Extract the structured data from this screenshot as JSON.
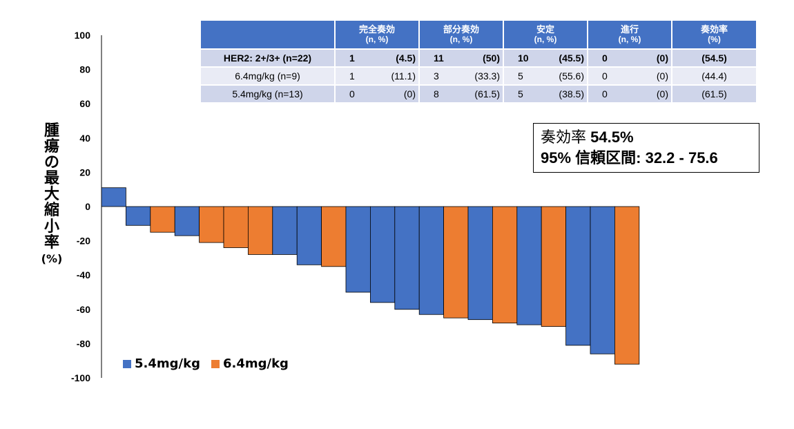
{
  "chart_data": {
    "type": "bar",
    "ylabel_chars": [
      "腫",
      "瘍",
      "の",
      "最",
      "大",
      "縮",
      "小",
      "率"
    ],
    "ylabel_unit": "(%)",
    "ylim": [
      -100,
      100
    ],
    "yticks": [
      "100",
      "80",
      "60",
      "40",
      "20",
      "0",
      "-20",
      "-40",
      "-60",
      "-80",
      "-100"
    ],
    "ytick_values": [
      100,
      80,
      60,
      40,
      20,
      0,
      -20,
      -40,
      -60,
      -80,
      -100
    ],
    "series_names": [
      "5.4mg/kg",
      "6.4mg/kg"
    ],
    "series_colors": [
      "#4472c4",
      "#ed7d31"
    ],
    "bars": [
      {
        "series": 0,
        "value": 11
      },
      {
        "series": 0,
        "value": -11
      },
      {
        "series": 1,
        "value": -15
      },
      {
        "series": 0,
        "value": -17
      },
      {
        "series": 1,
        "value": -21
      },
      {
        "series": 1,
        "value": -24
      },
      {
        "series": 1,
        "value": -28
      },
      {
        "series": 0,
        "value": -28
      },
      {
        "series": 0,
        "value": -34
      },
      {
        "series": 1,
        "value": -35
      },
      {
        "series": 0,
        "value": -50
      },
      {
        "series": 0,
        "value": -56
      },
      {
        "series": 0,
        "value": -60
      },
      {
        "series": 0,
        "value": -63
      },
      {
        "series": 1,
        "value": -65
      },
      {
        "series": 0,
        "value": -66
      },
      {
        "series": 1,
        "value": -68
      },
      {
        "series": 0,
        "value": -69
      },
      {
        "series": 1,
        "value": -70
      },
      {
        "series": 0,
        "value": -81
      },
      {
        "series": 0,
        "value": -86
      },
      {
        "series": 1,
        "value": -92
      }
    ]
  },
  "summary_table": {
    "headers": [
      {
        "title": "",
        "sub": ""
      },
      {
        "title": "完全奏効",
        "sub": "(n, %)"
      },
      {
        "title": "部分奏効",
        "sub": "(n, %)"
      },
      {
        "title": "安定",
        "sub": "(n, %)"
      },
      {
        "title": "進行",
        "sub": "(n, %)"
      },
      {
        "title": "奏効率",
        "sub": "(%)"
      }
    ],
    "rows": [
      {
        "label": "HER2: 2+/3+ (n=22)",
        "cr_n": "1",
        "cr_p": "(4.5)",
        "pr_n": "11",
        "pr_p": "(50)",
        "sd_n": "10",
        "sd_p": "(45.5)",
        "pd_n": "0",
        "pd_p": "(0)",
        "orr": "(54.5)"
      },
      {
        "label": "6.4mg/kg (n=9)",
        "cr_n": "1",
        "cr_p": "(11.1)",
        "pr_n": "3",
        "pr_p": "(33.3)",
        "sd_n": "5",
        "sd_p": "(55.6)",
        "pd_n": "0",
        "pd_p": "(0)",
        "orr": "(44.4)"
      },
      {
        "label": "5.4mg/kg (n=13)",
        "cr_n": "0",
        "cr_p": "(0)",
        "pr_n": "8",
        "pr_p": "(61.5)",
        "sd_n": "5",
        "sd_p": "(38.5)",
        "pd_n": "0",
        "pd_p": "(0)",
        "orr": "(61.5)"
      }
    ]
  },
  "response_box": {
    "line1_label": "奏効率",
    "line1_value": "54.5%",
    "line2_value": "95% 信頼区間: 32.2 - 75.6"
  }
}
